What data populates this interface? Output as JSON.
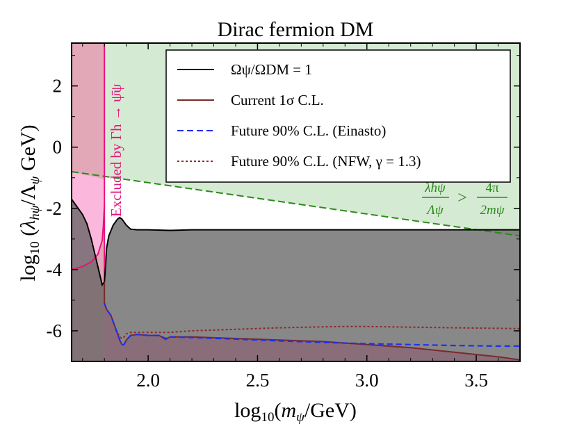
{
  "chart_data": {
    "type": "line",
    "title": "Dirac fermion DM",
    "xlabel": "log10(mψ/GeV)",
    "ylabel": "log10 (λhψ/Λψ GeV)",
    "xlim": [
      1.65,
      3.7
    ],
    "ylim": [
      -7.0,
      3.4
    ],
    "xticks": [
      2.0,
      2.5,
      3.0,
      3.5
    ],
    "xtick_labels": [
      "2.0",
      "2.5",
      "3.0",
      "3.5"
    ],
    "yticks": [
      2,
      0,
      -2,
      -4,
      -6
    ],
    "ytick_labels": [
      "2",
      "0",
      "-2",
      "-4",
      "-6"
    ],
    "legend_position": "top-right",
    "legend": [
      {
        "key": "relic",
        "label": "Ωψ/ΩDM = 1",
        "color": "#000000",
        "style": "solid"
      },
      {
        "key": "current",
        "label": "Current 1σ C.L.",
        "color": "#7a2a2a",
        "style": "solid"
      },
      {
        "key": "einasto",
        "label": "Future 90% C.L. (Einasto)",
        "color": "#1f2ff0",
        "style": "dashed"
      },
      {
        "key": "nfw",
        "label": "Future 90% C.L. (NFW, γ = 1.3)",
        "color": "#8b2a2a",
        "style": "dotted"
      }
    ],
    "series": {
      "relic": {
        "x": [
          1.65,
          1.67,
          1.7,
          1.72,
          1.74,
          1.76,
          1.78,
          1.79,
          1.8,
          1.805,
          1.81,
          1.82,
          1.84,
          1.86,
          1.87,
          1.88,
          1.9,
          1.92,
          1.95,
          2.0,
          2.1,
          2.2,
          2.5,
          3.0,
          3.5,
          3.7
        ],
        "y": [
          -1.7,
          -1.9,
          -2.2,
          -2.5,
          -3.0,
          -3.6,
          -4.2,
          -4.5,
          -4.4,
          -3.9,
          -3.3,
          -2.9,
          -2.55,
          -2.35,
          -2.3,
          -2.35,
          -2.55,
          -2.68,
          -2.7,
          -2.7,
          -2.72,
          -2.7,
          -2.7,
          -2.7,
          -2.7,
          -2.7
        ]
      },
      "current": {
        "x": [
          1.8,
          1.81,
          1.83,
          1.85,
          1.87,
          1.88,
          1.89,
          1.9,
          1.92,
          1.95,
          2.0,
          2.05,
          2.08,
          2.1,
          2.2,
          2.4,
          2.6,
          2.8,
          3.0,
          3.2,
          3.4,
          3.6,
          3.7
        ],
        "y": [
          -5.1,
          -5.3,
          -5.5,
          -5.9,
          -6.3,
          -6.45,
          -6.45,
          -6.3,
          -6.15,
          -6.12,
          -6.15,
          -6.15,
          -6.28,
          -6.2,
          -6.2,
          -6.25,
          -6.3,
          -6.35,
          -6.45,
          -6.55,
          -6.7,
          -6.85,
          -6.95
        ]
      },
      "einasto": {
        "x": [
          1.8,
          1.81,
          1.83,
          1.85,
          1.87,
          1.88,
          1.89,
          1.9,
          1.92,
          1.95,
          2.0,
          2.05,
          2.08,
          2.1,
          2.2,
          2.4,
          2.6,
          2.8,
          3.0,
          3.2,
          3.4,
          3.6,
          3.7
        ],
        "y": [
          -5.1,
          -5.3,
          -5.5,
          -5.9,
          -6.3,
          -6.45,
          -6.45,
          -6.3,
          -6.15,
          -6.12,
          -6.15,
          -6.15,
          -6.25,
          -6.2,
          -6.22,
          -6.27,
          -6.33,
          -6.38,
          -6.42,
          -6.45,
          -6.48,
          -6.5,
          -6.5
        ]
      },
      "nfw": {
        "x": [
          1.8,
          1.81,
          1.83,
          1.85,
          1.87,
          1.88,
          1.89,
          1.9,
          1.92,
          1.95,
          2.0,
          2.1,
          2.2,
          2.4,
          2.6,
          2.8,
          2.9,
          3.0,
          3.2,
          3.4,
          3.6,
          3.7
        ],
        "y": [
          -5.1,
          -5.3,
          -5.5,
          -5.9,
          -6.2,
          -6.25,
          -6.2,
          -6.1,
          -6.05,
          -6.05,
          -6.05,
          -6.05,
          -6.0,
          -5.95,
          -5.9,
          -5.87,
          -5.86,
          -5.86,
          -5.88,
          -5.9,
          -5.92,
          -5.93
        ]
      }
    },
    "higgs_exclusion": {
      "x_boundary": 1.8,
      "lower_curve_x": [
        1.65,
        1.7,
        1.74,
        1.77,
        1.79,
        1.795,
        1.8
      ],
      "lower_curve_y": [
        -4.0,
        -3.9,
        -3.75,
        -3.5,
        -3.05,
        -2.6,
        -1.9
      ],
      "label": "Excluded by Γh → ψ̄ψ",
      "color": "#e8127c"
    },
    "perturbativity": {
      "line_x": [
        1.65,
        3.7
      ],
      "line_y": [
        -0.8,
        -2.9
      ],
      "label_lhs_num": "λhψ",
      "label_lhs_den": "Λψ",
      "label_op": ">",
      "label_rhs_num": "4π",
      "label_rhs_den": "2mψ",
      "color": "#2a8a1a"
    }
  },
  "colors": {
    "relic_fill": "#606060",
    "green_fill": "#d5ead2",
    "pink_fill_upper": "#e2a8b8",
    "pink_fill_mid": "#fbb8dc",
    "higgs_line": "#e8127c"
  }
}
